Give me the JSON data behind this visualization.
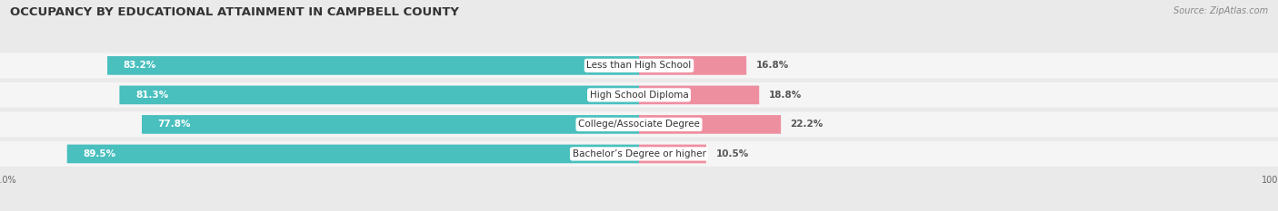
{
  "title": "OCCUPANCY BY EDUCATIONAL ATTAINMENT IN CAMPBELL COUNTY",
  "source": "Source: ZipAtlas.com",
  "categories": [
    "Less than High School",
    "High School Diploma",
    "College/Associate Degree",
    "Bachelor’s Degree or higher"
  ],
  "owner_values": [
    83.2,
    81.3,
    77.8,
    89.5
  ],
  "renter_values": [
    16.8,
    18.8,
    22.2,
    10.5
  ],
  "owner_color": "#49BFBE",
  "renter_color": "#EE8FA0",
  "background_color": "#EAEAEA",
  "row_bg_color": "#F5F5F5",
  "title_fontsize": 9.5,
  "source_fontsize": 7,
  "bar_label_fontsize": 7.5,
  "category_fontsize": 7.5,
  "tick_fontsize": 7,
  "legend_fontsize": 7.5,
  "bar_height": 0.62
}
